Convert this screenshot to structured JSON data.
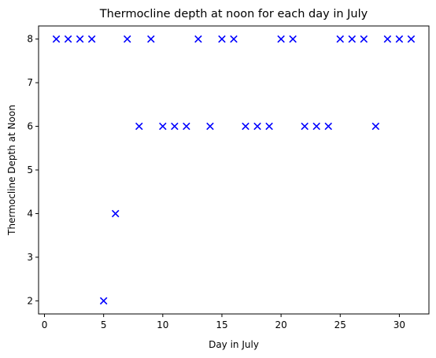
{
  "chart_data": {
    "type": "scatter",
    "title": "Thermocline depth at noon for each day in July",
    "xlabel": "Day in July",
    "ylabel": "Thermocline Depth at Noon",
    "xlim": [
      -0.5,
      32.5
    ],
    "ylim": [
      1.7,
      8.3
    ],
    "xticks": [
      0,
      5,
      10,
      15,
      20,
      25,
      30
    ],
    "yticks": [
      2,
      3,
      4,
      5,
      6,
      7,
      8
    ],
    "grid": false,
    "marker": "x",
    "color": "#0000ff",
    "series": [
      {
        "x": [
          1,
          2,
          3,
          4,
          5,
          6,
          7,
          8,
          9,
          10,
          11,
          12,
          13,
          14,
          15,
          16,
          17,
          18,
          19,
          20,
          21,
          22,
          23,
          24,
          25,
          26,
          27,
          28,
          29,
          30,
          31
        ],
        "y": [
          8,
          8,
          8,
          8,
          2,
          4,
          8,
          6,
          8,
          6,
          6,
          6,
          8,
          6,
          8,
          8,
          6,
          6,
          6,
          8,
          8,
          6,
          6,
          6,
          8,
          8,
          8,
          6,
          8,
          8,
          8
        ]
      }
    ]
  }
}
